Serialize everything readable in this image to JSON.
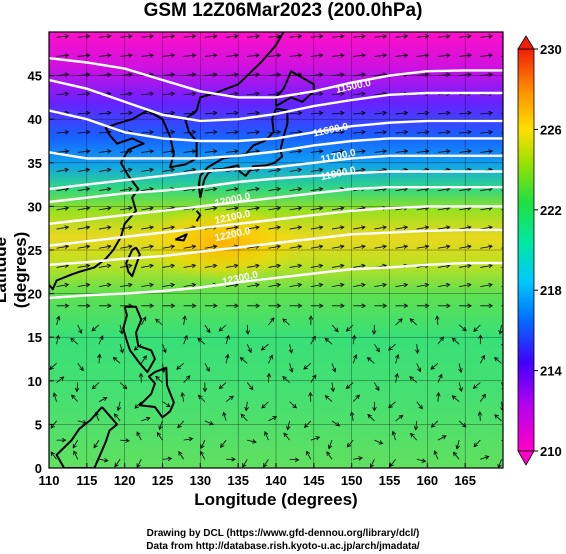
{
  "title": "GSM 12Z06Mar2023 (200.0hPa)",
  "xlabel": "Longitude (degrees)",
  "ylabel": "Latitude  (degrees)",
  "credits": [
    "Drawing by DCL (https://www.gfd-dennou.org/library/dcl/)",
    "Data from http://database.rish.kyoto-u.ac.jp/arch/jmadata/"
  ],
  "chart_data": {
    "type": "heatmap",
    "title": "GSM 12Z06Mar2023 (200.0hPa)",
    "xlabel": "Longitude (degrees)",
    "ylabel": "Latitude  (degrees)",
    "xlim": [
      110,
      170
    ],
    "ylim": [
      0,
      50
    ],
    "x_ticks": [
      110,
      115,
      120,
      125,
      130,
      135,
      140,
      145,
      150,
      155,
      160,
      165
    ],
    "y_ticks": [
      0,
      5,
      10,
      15,
      20,
      25,
      30,
      35,
      40,
      45
    ],
    "colorbar": {
      "ticks": [
        210,
        214,
        218,
        222,
        226,
        230
      ],
      "range": [
        210,
        230
      ],
      "colors_low_to_high": [
        "#ff00c8",
        "#5a00ff",
        "#0050ff",
        "#00d0ff",
        "#00e878",
        "#8ce600",
        "#ffe000",
        "#ff8c00",
        "#f01e0a"
      ]
    },
    "shaded_field_estimate": [
      {
        "lat": 48,
        "value": 211
      },
      {
        "lat": 44,
        "value": 213
      },
      {
        "lat": 40,
        "value": 215
      },
      {
        "lat": 37,
        "value": 217.5
      },
      {
        "lat": 34,
        "value": 221
      },
      {
        "lat": 30,
        "value": 224
      },
      {
        "lat": 25,
        "value": 222
      },
      {
        "lat": 20,
        "value": 220.5
      },
      {
        "lat": 10,
        "value": 220
      },
      {
        "lat": 0,
        "value": 221
      }
    ],
    "contour_labels": [
      {
        "text": "11500.0",
        "lon": 148,
        "lat": 43
      },
      {
        "text": "11600.0",
        "lon": 145,
        "lat": 38
      },
      {
        "text": "11700.0",
        "lon": 146,
        "lat": 35
      },
      {
        "text": "11800.0",
        "lon": 146,
        "lat": 33
      },
      {
        "text": "12000.0",
        "lon": 132,
        "lat": 30
      },
      {
        "text": "12100.0",
        "lon": 132,
        "lat": 28
      },
      {
        "text": "12200.0",
        "lon": 132,
        "lat": 26
      },
      {
        "text": "12300.0",
        "lon": 133,
        "lat": 21
      }
    ],
    "contours": [
      {
        "level": "11500.0",
        "points": [
          [
            110,
            47
          ],
          [
            115,
            46.5
          ],
          [
            120,
            45.8
          ],
          [
            125,
            44.5
          ],
          [
            130,
            43.2
          ],
          [
            135,
            42.5
          ],
          [
            140,
            42.5
          ],
          [
            145,
            43.2
          ],
          [
            150,
            44.2
          ],
          [
            155,
            45
          ],
          [
            160,
            45.5
          ],
          [
            165,
            45.6
          ],
          [
            170,
            45.6
          ]
        ]
      },
      {
        "level": "11600.0",
        "points": [
          [
            110,
            44.5
          ],
          [
            115,
            43.5
          ],
          [
            120,
            42
          ],
          [
            125,
            40.5
          ],
          [
            130,
            39.8
          ],
          [
            135,
            40
          ],
          [
            140,
            40.6
          ],
          [
            145,
            41.5
          ],
          [
            150,
            42.2
          ],
          [
            155,
            42.8
          ],
          [
            160,
            43
          ],
          [
            165,
            43
          ],
          [
            170,
            43
          ]
        ]
      },
      {
        "level": "11700.0",
        "points": [
          [
            110,
            41
          ],
          [
            115,
            40
          ],
          [
            120,
            38.5
          ],
          [
            125,
            37.8
          ],
          [
            130,
            37.5
          ],
          [
            135,
            37.5
          ],
          [
            140,
            37.8
          ],
          [
            145,
            38.5
          ],
          [
            150,
            39.2
          ],
          [
            155,
            39.6
          ],
          [
            160,
            39.8
          ],
          [
            165,
            39.8
          ],
          [
            170,
            39.8
          ]
        ]
      },
      {
        "level": "11800.0",
        "points": [
          [
            110,
            36.2
          ],
          [
            115,
            35.5
          ],
          [
            120,
            35.5
          ],
          [
            125,
            35.5
          ],
          [
            130,
            35.5
          ],
          [
            135,
            35.8
          ],
          [
            140,
            36.3
          ],
          [
            145,
            37
          ],
          [
            150,
            37.5
          ],
          [
            155,
            37.8
          ],
          [
            160,
            37.8
          ],
          [
            165,
            37.8
          ],
          [
            170,
            37.8
          ]
        ]
      },
      {
        "level": "11900.0",
        "points": [
          [
            110,
            32
          ],
          [
            115,
            32.5
          ],
          [
            120,
            33
          ],
          [
            125,
            33.5
          ],
          [
            130,
            34
          ],
          [
            135,
            34.3
          ],
          [
            140,
            34.5
          ],
          [
            145,
            35
          ],
          [
            150,
            35.5
          ],
          [
            155,
            35.8
          ],
          [
            160,
            35.8
          ],
          [
            165,
            35.8
          ],
          [
            170,
            35.8
          ]
        ]
      },
      {
        "level": "12000.0",
        "points": [
          [
            110,
            30.5
          ],
          [
            115,
            31
          ],
          [
            120,
            31.5
          ],
          [
            125,
            31.8
          ],
          [
            130,
            32.2
          ],
          [
            135,
            32.8
          ],
          [
            140,
            33.2
          ],
          [
            145,
            33.5
          ],
          [
            150,
            33.8
          ],
          [
            155,
            34
          ],
          [
            160,
            34
          ],
          [
            165,
            34
          ],
          [
            170,
            34
          ]
        ]
      },
      {
        "level": "12100.0",
        "points": [
          [
            110,
            28
          ],
          [
            115,
            28.5
          ],
          [
            120,
            29
          ],
          [
            125,
            29.5
          ],
          [
            130,
            30
          ],
          [
            135,
            30.5
          ],
          [
            140,
            31
          ],
          [
            145,
            31.5
          ],
          [
            150,
            32
          ],
          [
            155,
            32.2
          ],
          [
            160,
            32.2
          ],
          [
            165,
            32.2
          ],
          [
            170,
            32.2
          ]
        ]
      },
      {
        "level": "12200.0",
        "points": [
          [
            110,
            25.5
          ],
          [
            115,
            26
          ],
          [
            120,
            26.5
          ],
          [
            125,
            27
          ],
          [
            130,
            27.5
          ],
          [
            135,
            28
          ],
          [
            140,
            28.5
          ],
          [
            145,
            29
          ],
          [
            150,
            29.5
          ],
          [
            155,
            29.8
          ],
          [
            160,
            30
          ],
          [
            165,
            30
          ],
          [
            170,
            30
          ]
        ]
      },
      {
        "level": "12250.0",
        "points": [
          [
            110,
            23.3
          ],
          [
            115,
            23.6
          ],
          [
            120,
            24
          ],
          [
            125,
            24.3
          ],
          [
            130,
            24.8
          ],
          [
            135,
            25.3
          ],
          [
            140,
            25.8
          ],
          [
            145,
            26.3
          ],
          [
            150,
            26.8
          ],
          [
            155,
            27
          ],
          [
            160,
            27.2
          ],
          [
            165,
            27.3
          ],
          [
            170,
            27.3
          ]
        ]
      },
      {
        "level": "12300.0",
        "points": [
          [
            110,
            19.5
          ],
          [
            115,
            19.8
          ],
          [
            120,
            20
          ],
          [
            125,
            20.3
          ],
          [
            130,
            20.7
          ],
          [
            135,
            21.3
          ],
          [
            140,
            21.8
          ],
          [
            145,
            22.3
          ],
          [
            150,
            22.8
          ],
          [
            155,
            23
          ],
          [
            160,
            23.3
          ],
          [
            165,
            23.5
          ],
          [
            170,
            23.5
          ]
        ]
      }
    ],
    "legend": "colorbar right",
    "grid": true
  }
}
